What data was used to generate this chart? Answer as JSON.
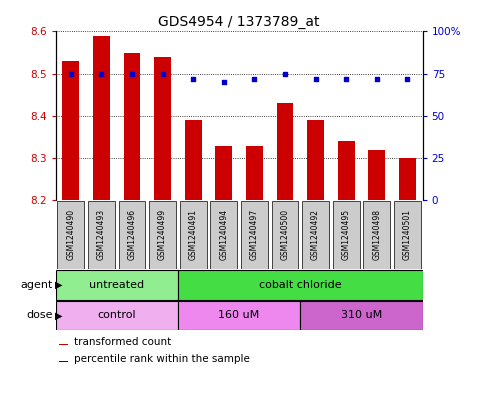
{
  "title": "GDS4954 / 1373789_at",
  "samples": [
    "GSM1240490",
    "GSM1240493",
    "GSM1240496",
    "GSM1240499",
    "GSM1240491",
    "GSM1240494",
    "GSM1240497",
    "GSM1240500",
    "GSM1240492",
    "GSM1240495",
    "GSM1240498",
    "GSM1240501"
  ],
  "red_values": [
    8.53,
    8.59,
    8.55,
    8.54,
    8.39,
    8.33,
    8.33,
    8.43,
    8.39,
    8.34,
    8.32,
    8.3
  ],
  "blue_values": [
    75,
    75,
    75,
    75,
    72,
    70,
    72,
    75,
    72,
    72,
    72,
    72
  ],
  "ymin": 8.2,
  "ymax": 8.6,
  "yticks": [
    8.2,
    8.3,
    8.4,
    8.5,
    8.6
  ],
  "right_yticks": [
    0,
    25,
    50,
    75,
    100
  ],
  "right_ylabels": [
    "0",
    "25",
    "50",
    "75",
    "100%"
  ],
  "bar_color": "#cc0000",
  "dot_color": "#0000cc",
  "bar_bottom": 8.2,
  "agent_groups": [
    {
      "label": "untreated",
      "start": 0,
      "end": 4,
      "color": "#90ee90"
    },
    {
      "label": "cobalt chloride",
      "start": 4,
      "end": 12,
      "color": "#44dd44"
    }
  ],
  "dose_groups": [
    {
      "label": "control",
      "start": 0,
      "end": 4,
      "color": "#f0b0f0"
    },
    {
      "label": "160 uM",
      "start": 4,
      "end": 8,
      "color": "#ee88ee"
    },
    {
      "label": "310 uM",
      "start": 8,
      "end": 12,
      "color": "#cc66cc"
    }
  ],
  "legend_red_label": "transformed count",
  "legend_blue_label": "percentile rank within the sample",
  "bar_width": 0.55,
  "title_fontsize": 10,
  "tick_fontsize": 7.5,
  "sample_fontsize": 5.5,
  "row_fontsize": 8,
  "legend_fontsize": 7.5
}
